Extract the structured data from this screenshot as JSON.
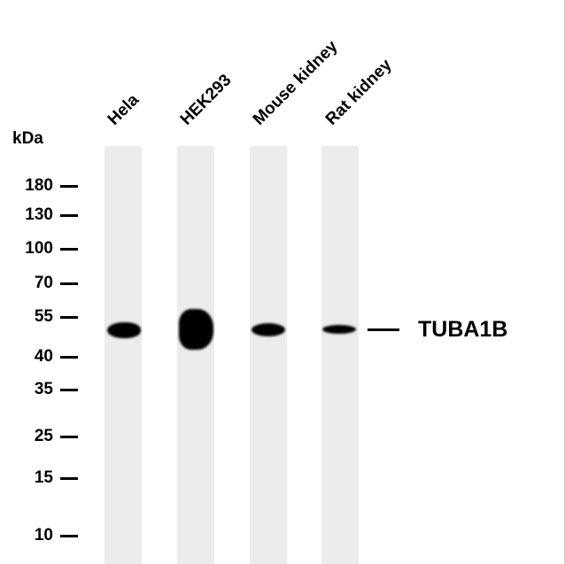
{
  "unit_label": "kDa",
  "lanes": [
    {
      "label": "Hela"
    },
    {
      "label": "HEK293"
    },
    {
      "label": "Mouse kidney"
    },
    {
      "label": "Rat kidney"
    }
  ],
  "markers": [
    "180",
    "130",
    "100",
    "70",
    "55",
    "40",
    "35",
    "25",
    "15",
    "10"
  ],
  "target": {
    "label": "TUBA1B"
  }
}
